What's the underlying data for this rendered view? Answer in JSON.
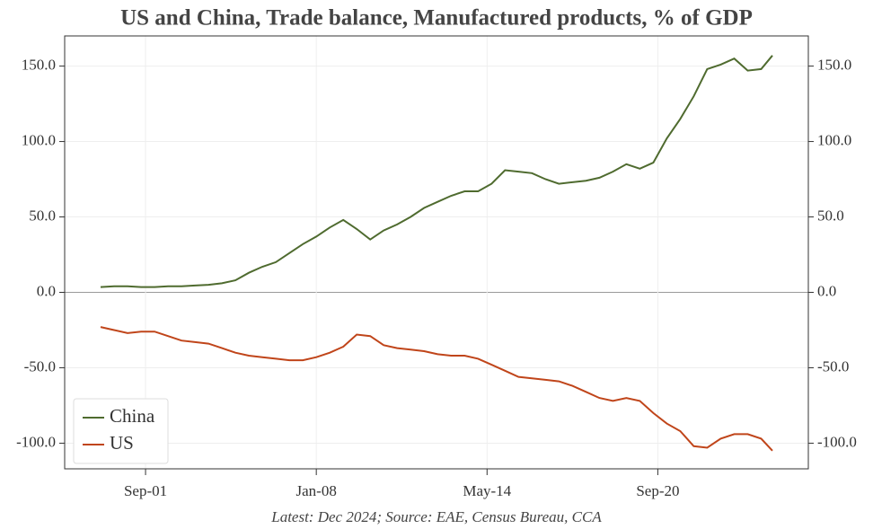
{
  "chart_data": {
    "type": "line",
    "title": "US and China, Trade balance, Manufactured products, % of GDP",
    "footnote": "Latest: Dec 2024; Source: EAE, Census Bureau, CCA",
    "x": [
      "2000-01",
      "2000-07",
      "2001-01",
      "2001-07",
      "2002-01",
      "2002-07",
      "2003-01",
      "2003-07",
      "2004-01",
      "2004-07",
      "2005-01",
      "2005-07",
      "2006-01",
      "2006-07",
      "2007-01",
      "2007-07",
      "2008-01",
      "2008-07",
      "2009-01",
      "2009-07",
      "2010-01",
      "2010-07",
      "2011-01",
      "2011-07",
      "2012-01",
      "2012-07",
      "2013-01",
      "2013-07",
      "2014-01",
      "2014-07",
      "2015-01",
      "2015-07",
      "2016-01",
      "2016-07",
      "2017-01",
      "2017-07",
      "2018-01",
      "2018-07",
      "2019-01",
      "2019-07",
      "2020-01",
      "2020-07",
      "2021-01",
      "2021-07",
      "2022-01",
      "2022-07",
      "2023-01",
      "2023-07",
      "2024-01",
      "2024-07",
      "2024-12"
    ],
    "series": [
      {
        "name": "China",
        "color": "#4f6b2f",
        "values": [
          3.5,
          4,
          4,
          3.5,
          3.5,
          4,
          4,
          4.5,
          5,
          6,
          8,
          13,
          17,
          20,
          26,
          32,
          37,
          43,
          48,
          42,
          35,
          41,
          45,
          50,
          56,
          60,
          64,
          67,
          67,
          72,
          81,
          80,
          79,
          75,
          72,
          73,
          74,
          76,
          80,
          85,
          82,
          86,
          102,
          115,
          130,
          148,
          151,
          155,
          147,
          148,
          157
        ]
      },
      {
        "name": "US",
        "color": "#c0451a",
        "values": [
          -23,
          -25,
          -27,
          -26,
          -26,
          -29,
          -32,
          -33,
          -34,
          -37,
          -40,
          -42,
          -43,
          -44,
          -45,
          -45,
          -43,
          -40,
          -36,
          -28,
          -29,
          -35,
          -37,
          -38,
          -39,
          -41,
          -42,
          -42,
          -44,
          -48,
          -52,
          -56,
          -57,
          -58,
          -59,
          -62,
          -66,
          -70,
          -72,
          -70,
          -72,
          -80,
          -87,
          -92,
          -102,
          -103,
          -97,
          -94,
          -94,
          -97,
          -105
        ]
      }
    ],
    "xlim": [
      "1998-09",
      "2026-04"
    ],
    "xticks": [
      {
        "value": "2001-09",
        "label": "Sep-01"
      },
      {
        "value": "2008-01",
        "label": "Jan-08"
      },
      {
        "value": "2014-05",
        "label": "May-14"
      },
      {
        "value": "2020-09",
        "label": "Sep-20"
      }
    ],
    "ylim": [
      -117,
      170
    ],
    "yticks": [
      {
        "value": -100,
        "label": "-100.0"
      },
      {
        "value": -50,
        "label": "-50.0"
      },
      {
        "value": 0,
        "label": "0.0"
      },
      {
        "value": 50,
        "label": "50.0"
      },
      {
        "value": 100,
        "label": "100.0"
      },
      {
        "value": 150,
        "label": "150.0"
      }
    ],
    "grid": true,
    "legend": "lower left"
  }
}
